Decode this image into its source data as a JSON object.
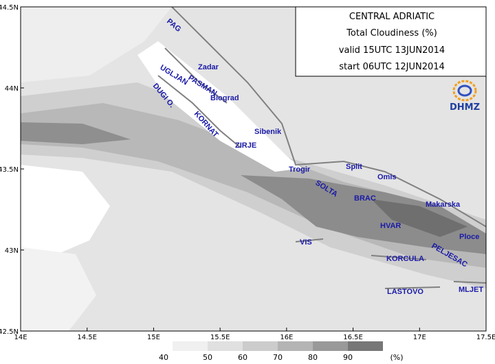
{
  "header": {
    "title": "CENTRAL ADRIATIC",
    "subtitle": "Total Cloudiness (%)",
    "valid": "valid 15UTC 13JUN2014",
    "start": "start 06UTC 12JUN2014",
    "logo": "DHMZ"
  },
  "axes": {
    "lat_labels": [
      "44.5N",
      "44N",
      "43.5N",
      "43N",
      "42.5N"
    ],
    "lon_labels": [
      "14E",
      "14.5E",
      "15E",
      "15.5E",
      "16E",
      "16.5E",
      "17E",
      "17.5E"
    ]
  },
  "places": [
    "PAG",
    "Zadar",
    "UGLJAN",
    "PASMAN",
    "Biograd",
    "DUGI O.",
    "KORNAT",
    "Sibenik",
    "ZIRJE",
    "Trogir",
    "Split",
    "Omis",
    "SOLTA",
    "BRAC",
    "Makarska",
    "HVAR",
    "Ploce",
    "VIS",
    "PELJESAC",
    "KORCULA",
    "LASTOVO",
    "MLJET"
  ],
  "legend": {
    "labels": [
      40,
      50,
      60,
      70,
      80,
      90
    ],
    "unit": "(%)"
  }
}
